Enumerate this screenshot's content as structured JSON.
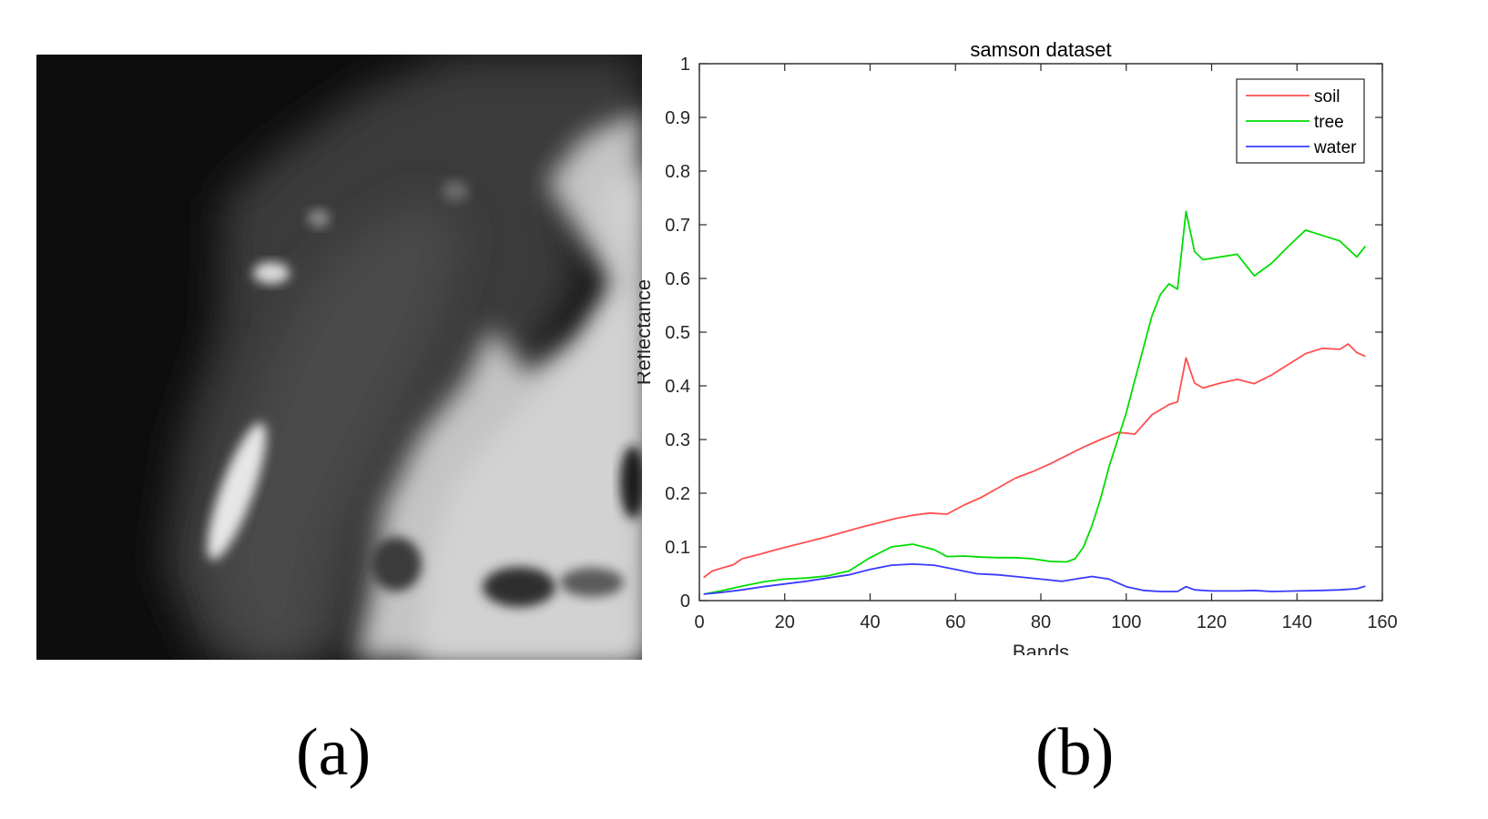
{
  "figure": {
    "caption_a": "(a)",
    "caption_b": "(b)",
    "image_a": {
      "content": "grayscale hyperspectral band image"
    }
  },
  "chart_data": {
    "type": "line",
    "title": "samson dataset",
    "xlabel": "Bands",
    "ylabel": "Reflectance",
    "xlim": [
      0,
      160
    ],
    "ylim": [
      0,
      1
    ],
    "xticks": [
      0,
      20,
      40,
      60,
      80,
      100,
      120,
      140,
      160
    ],
    "yticks": [
      0,
      0.1,
      0.2,
      0.3,
      0.4,
      0.5,
      0.6,
      0.7,
      0.8,
      0.9,
      1
    ],
    "ytick_labels": [
      "0",
      "0.1",
      "0.2",
      "0.3",
      "0.4",
      "0.5",
      "0.6",
      "0.7",
      "0.8",
      "0.9",
      "1"
    ],
    "grid": false,
    "legend": "top-right",
    "series": [
      {
        "name": "soil",
        "color": "#ff5050",
        "x": [
          1,
          3,
          5,
          8,
          10,
          14,
          18,
          22,
          26,
          30,
          34,
          38,
          42,
          46,
          50,
          54,
          58,
          62,
          66,
          70,
          74,
          78,
          82,
          86,
          90,
          94,
          98,
          100,
          102,
          106,
          110,
          112,
          114,
          116,
          118,
          122,
          126,
          130,
          134,
          138,
          142,
          146,
          150,
          152,
          154,
          156
        ],
        "y": [
          0.043,
          0.055,
          0.06,
          0.067,
          0.078,
          0.086,
          0.095,
          0.103,
          0.111,
          0.119,
          0.128,
          0.137,
          0.145,
          0.153,
          0.159,
          0.163,
          0.161,
          0.178,
          0.192,
          0.21,
          0.228,
          0.24,
          0.254,
          0.27,
          0.286,
          0.3,
          0.313,
          0.312,
          0.31,
          0.346,
          0.365,
          0.37,
          0.452,
          0.405,
          0.396,
          0.405,
          0.412,
          0.404,
          0.42,
          0.44,
          0.46,
          0.47,
          0.468,
          0.478,
          0.462,
          0.455
        ]
      },
      {
        "name": "tree",
        "color": "#00dd00",
        "x": [
          1,
          5,
          10,
          15,
          20,
          25,
          30,
          35,
          40,
          45,
          50,
          55,
          58,
          62,
          66,
          70,
          74,
          78,
          82,
          86,
          88,
          90,
          92,
          94,
          96,
          98,
          100,
          102,
          104,
          106,
          108,
          110,
          112,
          114,
          116,
          118,
          122,
          126,
          128,
          130,
          134,
          138,
          142,
          146,
          150,
          154,
          156
        ],
        "y": [
          0.012,
          0.018,
          0.027,
          0.035,
          0.04,
          0.042,
          0.046,
          0.055,
          0.08,
          0.1,
          0.105,
          0.095,
          0.082,
          0.083,
          0.081,
          0.08,
          0.08,
          0.078,
          0.073,
          0.072,
          0.078,
          0.1,
          0.14,
          0.19,
          0.25,
          0.3,
          0.35,
          0.41,
          0.47,
          0.53,
          0.57,
          0.59,
          0.58,
          0.725,
          0.65,
          0.635,
          0.64,
          0.645,
          0.625,
          0.605,
          0.628,
          0.66,
          0.69,
          0.68,
          0.67,
          0.64,
          0.66
        ]
      },
      {
        "name": "water",
        "color": "#3a3aff",
        "x": [
          1,
          5,
          10,
          15,
          20,
          25,
          30,
          35,
          40,
          45,
          50,
          55,
          60,
          65,
          70,
          75,
          80,
          85,
          88,
          92,
          96,
          100,
          104,
          108,
          112,
          114,
          116,
          120,
          126,
          130,
          134,
          140,
          146,
          150,
          154,
          156
        ],
        "y": [
          0.012,
          0.015,
          0.02,
          0.026,
          0.031,
          0.036,
          0.042,
          0.048,
          0.058,
          0.066,
          0.068,
          0.066,
          0.058,
          0.05,
          0.048,
          0.044,
          0.04,
          0.036,
          0.04,
          0.045,
          0.04,
          0.026,
          0.019,
          0.017,
          0.017,
          0.026,
          0.02,
          0.018,
          0.018,
          0.019,
          0.017,
          0.018,
          0.019,
          0.02,
          0.022,
          0.027
        ]
      }
    ]
  }
}
